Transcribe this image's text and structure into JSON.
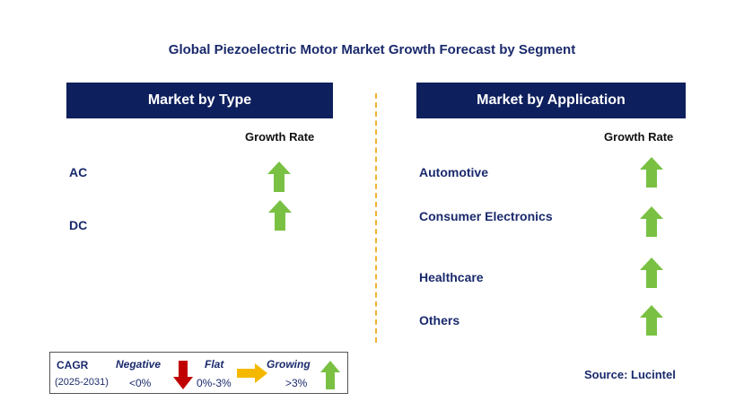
{
  "title": "Global Piezoelectric Motor Market Growth Forecast by Segment",
  "left_panel": {
    "header": "Market by Type",
    "growth_rate_label": "Growth Rate",
    "items": [
      {
        "label": "AC",
        "trend": "growing"
      },
      {
        "label": "DC",
        "trend": "growing"
      }
    ]
  },
  "right_panel": {
    "header": "Market by Application",
    "growth_rate_label": "Growth Rate",
    "items": [
      {
        "label": "Automotive",
        "trend": "growing"
      },
      {
        "label": "Consumer Electronics",
        "trend": "growing"
      },
      {
        "label": "Healthcare",
        "trend": "growing"
      },
      {
        "label": "Others",
        "trend": "growing"
      }
    ]
  },
  "legend": {
    "cagr": "CAGR",
    "period": "(2025-2031)",
    "negative_label": "Negative",
    "negative_range": "<0%",
    "flat_label": "Flat",
    "flat_range": "0%-3%",
    "growing_label": "Growing",
    "growing_range": ">3%"
  },
  "source": "Source: Lucintel",
  "colors": {
    "header_bg": "#0d1f5c",
    "growing": "#7ac143",
    "flat": "#f5b800",
    "negative": "#c00000",
    "divider": "#f2b233"
  }
}
